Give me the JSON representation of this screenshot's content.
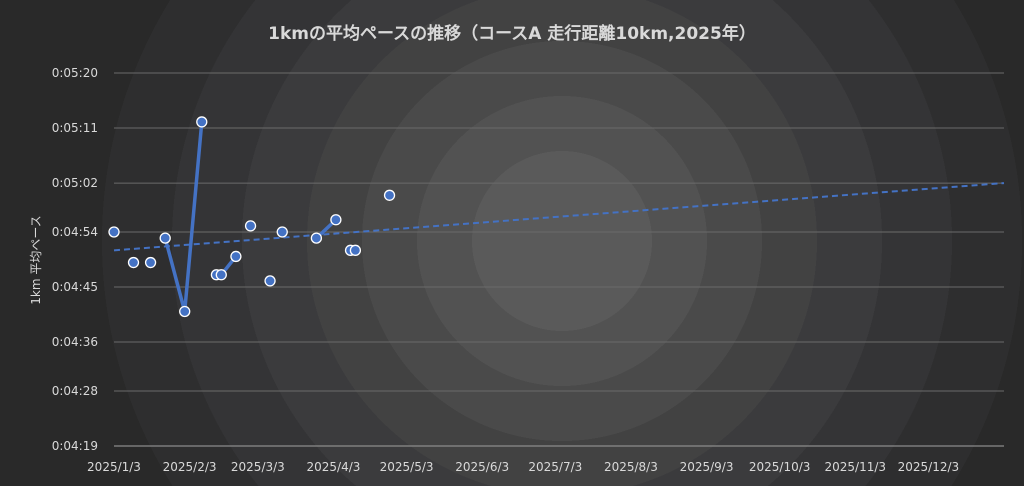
{
  "chart_data": {
    "type": "scatter",
    "title": "1kmの平均ペースの推移（コースA 走行距離10km,2025年）",
    "ylabel": "1km 平均ペース",
    "xlabel": "",
    "ylim": [
      "0:04:19",
      "0:05:20"
    ],
    "y_ticks": [
      "0:04:19",
      "0:04:28",
      "0:04:36",
      "0:04:45",
      "0:04:54",
      "0:05:02",
      "0:05:11",
      "0:05:20"
    ],
    "x_ticks": [
      "2025/1/3",
      "2025/2/3",
      "2025/3/3",
      "2025/4/3",
      "2025/5/3",
      "2025/6/3",
      "2025/7/3",
      "2025/8/3",
      "2025/9/3",
      "2025/10/3",
      "2025/11/3",
      "2025/12/3"
    ],
    "xlim": [
      "2025/1/3",
      "2026/1/3"
    ],
    "grid": true,
    "marker_color": "#4472c4",
    "line_color": "#4472c4",
    "trend_color": "#4472c4",
    "points": [
      {
        "x": "2025/1/3",
        "y": "0:04:54"
      },
      {
        "x": "2025/1/11",
        "y": "0:04:49"
      },
      {
        "x": "2025/1/18",
        "y": "0:04:49"
      },
      {
        "x": "2025/1/24",
        "y": "0:04:53"
      },
      {
        "x": "2025/2/1",
        "y": "0:04:41"
      },
      {
        "x": "2025/2/8",
        "y": "0:05:12"
      },
      {
        "x": "2025/2/14",
        "y": "0:04:47"
      },
      {
        "x": "2025/2/16",
        "y": "0:04:47"
      },
      {
        "x": "2025/2/22",
        "y": "0:04:50"
      },
      {
        "x": "2025/2/28",
        "y": "0:04:55"
      },
      {
        "x": "2025/3/8",
        "y": "0:04:46"
      },
      {
        "x": "2025/3/13",
        "y": "0:04:54"
      },
      {
        "x": "2025/3/27",
        "y": "0:04:53"
      },
      {
        "x": "2025/4/4",
        "y": "0:04:56"
      },
      {
        "x": "2025/4/10",
        "y": "0:04:51"
      },
      {
        "x": "2025/4/12",
        "y": "0:04:51"
      },
      {
        "x": "2025/4/26",
        "y": "0:05:00"
      }
    ],
    "line_segments": [
      [
        "2025/1/24",
        "2025/2/1",
        "2025/2/8"
      ],
      [
        "2025/2/14",
        "2025/2/16",
        "2025/2/22"
      ],
      [
        "2025/3/27",
        "2025/4/4"
      ]
    ],
    "trendline": {
      "style": "dashed",
      "start": {
        "x": "2025/1/3",
        "y": "0:04:51"
      },
      "end": {
        "x": "2026/1/3",
        "y": "0:05:02"
      }
    }
  }
}
